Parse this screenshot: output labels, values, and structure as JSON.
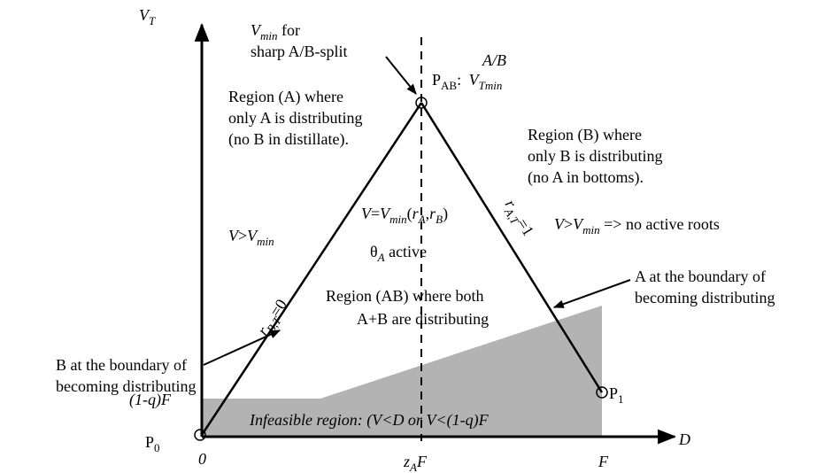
{
  "axes": {
    "y_label_main": "V",
    "y_label_sub": "T",
    "x_label": "D",
    "origin_tick": "0",
    "zaf_tick_main": "z",
    "zaf_tick_sub": "A",
    "zaf_tick_tail": "F",
    "f_tick": "F",
    "q_label": "(1-q)F"
  },
  "points": {
    "p0_main": "P",
    "p0_sub": "0",
    "p1_main": "P",
    "p1_sub": "1",
    "pab_main": "P",
    "pab_sub": "AB",
    "pab_colon": ":",
    "pab_v": "V",
    "pab_v_sub": "Tmin",
    "pab_v_sup": "A/B"
  },
  "vmin_note": {
    "v": "V",
    "v_sub": "min",
    "tail": " for",
    "line2": "sharp A/B-split"
  },
  "region_a": {
    "line1": "Region (A) where",
    "line2": "only A is distributing",
    "line3": "(no B in distillate)."
  },
  "region_b": {
    "line1": "Region (B) where",
    "line2": "only B is distributing",
    "line3": "(no A in bottoms)."
  },
  "region_ab": {
    "line1": "Region (AB) where both",
    "line2": "A+B are distributing"
  },
  "center_eq": {
    "v1": "V",
    "eq": "=",
    "v2": "V",
    "v2_sub": "min",
    "open": "(",
    "r1": "r",
    "r1_sub": "A",
    "comma": ",",
    "r2": "r",
    "r2_sub": "B",
    "close": ")"
  },
  "theta": {
    "sym": "θ",
    "sub": "A",
    "tail": " active"
  },
  "left_cond": {
    "v": "V",
    "gt": ">",
    "v2": "V",
    "v2_sub": "min"
  },
  "right_cond": {
    "v": "V",
    "gt": ">",
    "v2": "V",
    "v2_sub": "min",
    "tail": " => no active roots"
  },
  "left_edge_label": {
    "r": "r",
    "sub": "B,T",
    "tail": "=0"
  },
  "right_edge_label": {
    "r": "r",
    "sub": "A,T",
    "tail": "=1"
  },
  "b_boundary": {
    "line1": "B at the boundary of",
    "line2": "becoming distributing"
  },
  "a_boundary": {
    "line1": "A at the boundary of",
    "line2": "becoming distributing"
  },
  "infeasible": {
    "text": "Infeasible region: (V<D or V<(1-q)F"
  }
}
